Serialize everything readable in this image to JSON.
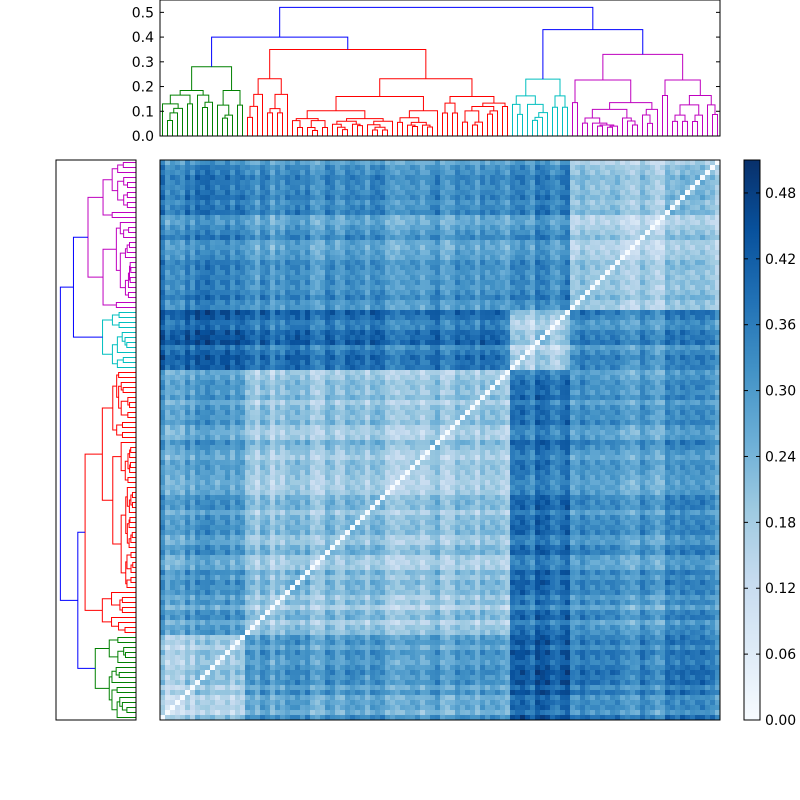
{
  "chart_data": [
    {
      "type": "heatmap",
      "description_name": "distance-matrix",
      "grid_size": 112,
      "diagonal_value": 0.0,
      "cmap": "Blues",
      "value_range": [
        0.0,
        0.51
      ],
      "cluster_order": [
        "green",
        "red",
        "cyan",
        "magenta"
      ],
      "cluster_leaf_counts": [
        17,
        53,
        12,
        30
      ],
      "axes_ticks": "none"
    },
    {
      "type": "dendrogram",
      "position": "top",
      "ylim": [
        0.0,
        0.55
      ],
      "ytick_labels": [
        "0.0",
        "0.1",
        "0.2",
        "0.3",
        "0.4",
        "0.5"
      ],
      "yticks": [
        0.0,
        0.1,
        0.2,
        0.3,
        0.4,
        0.5
      ],
      "link_color_above_threshold": "#0000ff",
      "root_height": 0.52,
      "merges": [
        {
          "left": "green",
          "right": "red",
          "height": 0.4
        },
        {
          "left": "cyan",
          "right": "magenta",
          "height": 0.43
        },
        {
          "left": "green+red",
          "right": "cyan+magenta",
          "height": 0.52
        }
      ],
      "clusters": [
        {
          "name": "green",
          "color": "#008000",
          "leaves": 17,
          "top_height": 0.28
        },
        {
          "name": "red",
          "color": "#ff0000",
          "leaves": 53,
          "top_height": 0.35
        },
        {
          "name": "cyan",
          "color": "#00bfbf",
          "leaves": 12,
          "top_height": 0.23
        },
        {
          "name": "magenta",
          "color": "#bf00bf",
          "leaves": 30,
          "top_height": 0.33
        }
      ]
    },
    {
      "type": "dendrogram",
      "position": "left",
      "orientation": "right",
      "order_top_to_bottom": [
        "magenta",
        "cyan",
        "red",
        "green"
      ],
      "clusters": [
        {
          "name": "magenta",
          "color": "#bf00bf",
          "leaves": 30
        },
        {
          "name": "cyan",
          "color": "#00bfbf",
          "leaves": 12
        },
        {
          "name": "red",
          "color": "#ff0000",
          "leaves": 53
        },
        {
          "name": "green",
          "color": "#008000",
          "leaves": 17
        }
      ],
      "axes_ticks": "none"
    },
    {
      "type": "colorbar",
      "range": [
        0.0,
        0.51
      ],
      "tick_values": [
        0.0,
        0.06,
        0.12,
        0.18,
        0.24,
        0.3,
        0.36,
        0.42,
        0.48
      ],
      "tick_labels": [
        "0.00",
        "0.06",
        "0.12",
        "0.18",
        "0.24",
        "0.30",
        "0.36",
        "0.42",
        "0.48"
      ],
      "colormap_stops": [
        "#f7fbff",
        "#deebf7",
        "#c6dbef",
        "#9ecae1",
        "#6baed6",
        "#4292c6",
        "#2171b5",
        "#08519c",
        "#08306b"
      ]
    }
  ]
}
